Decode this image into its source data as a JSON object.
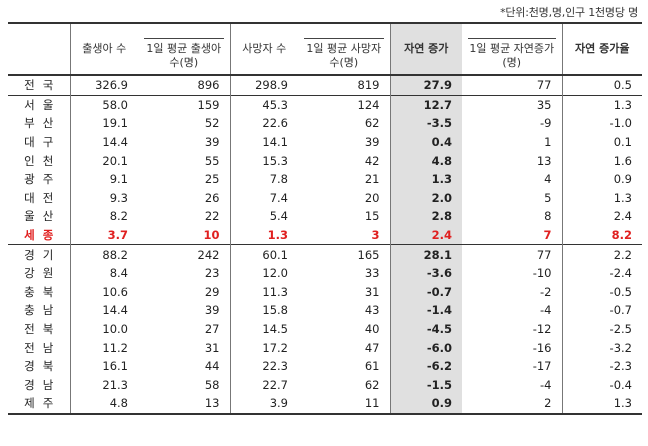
{
  "unit_note": "*단위:천명,명,인구 1천명당 명",
  "headers": {
    "births": "출생아 수",
    "births_daily": "1일 평균 출생아 수(명)",
    "deaths": "사망자 수",
    "deaths_daily": "1일 평균 사망자 수(명)",
    "natural": "자연 증가",
    "natural_daily": "1일 평균 자연증가(명)",
    "natural_rate": "자연 증가율"
  },
  "rows": [
    {
      "region": "전국",
      "births": "326.9",
      "births_daily": "896",
      "deaths": "298.9",
      "deaths_daily": "819",
      "natural": "27.9",
      "natural_daily": "77",
      "rate": "0.5"
    },
    {
      "region": "서울",
      "births": "58.0",
      "births_daily": "159",
      "deaths": "45.3",
      "deaths_daily": "124",
      "natural": "12.7",
      "natural_daily": "35",
      "rate": "1.3"
    },
    {
      "region": "부산",
      "births": "19.1",
      "births_daily": "52",
      "deaths": "22.6",
      "deaths_daily": "62",
      "natural": "-3.5",
      "natural_daily": "-9",
      "rate": "-1.0"
    },
    {
      "region": "대구",
      "births": "14.4",
      "births_daily": "39",
      "deaths": "14.1",
      "deaths_daily": "39",
      "natural": "0.4",
      "natural_daily": "1",
      "rate": "0.1"
    },
    {
      "region": "인천",
      "births": "20.1",
      "births_daily": "55",
      "deaths": "15.3",
      "deaths_daily": "42",
      "natural": "4.8",
      "natural_daily": "13",
      "rate": "1.6"
    },
    {
      "region": "광주",
      "births": "9.1",
      "births_daily": "25",
      "deaths": "7.8",
      "deaths_daily": "21",
      "natural": "1.3",
      "natural_daily": "4",
      "rate": "0.9"
    },
    {
      "region": "대전",
      "births": "9.3",
      "births_daily": "26",
      "deaths": "7.4",
      "deaths_daily": "20",
      "natural": "2.0",
      "natural_daily": "5",
      "rate": "1.3"
    },
    {
      "region": "울산",
      "births": "8.2",
      "births_daily": "22",
      "deaths": "5.4",
      "deaths_daily": "15",
      "natural": "2.8",
      "natural_daily": "8",
      "rate": "2.4"
    },
    {
      "region": "세종",
      "births": "3.7",
      "births_daily": "10",
      "deaths": "1.3",
      "deaths_daily": "3",
      "natural": "2.4",
      "natural_daily": "7",
      "rate": "8.2"
    },
    {
      "region": "경기",
      "births": "88.2",
      "births_daily": "242",
      "deaths": "60.1",
      "deaths_daily": "165",
      "natural": "28.1",
      "natural_daily": "77",
      "rate": "2.2"
    },
    {
      "region": "강원",
      "births": "8.4",
      "births_daily": "23",
      "deaths": "12.0",
      "deaths_daily": "33",
      "natural": "-3.6",
      "natural_daily": "-10",
      "rate": "-2.4"
    },
    {
      "region": "충북",
      "births": "10.6",
      "births_daily": "29",
      "deaths": "11.3",
      "deaths_daily": "31",
      "natural": "-0.7",
      "natural_daily": "-2",
      "rate": "-0.5"
    },
    {
      "region": "충남",
      "births": "14.4",
      "births_daily": "39",
      "deaths": "15.8",
      "deaths_daily": "43",
      "natural": "-1.4",
      "natural_daily": "-4",
      "rate": "-0.7"
    },
    {
      "region": "전북",
      "births": "10.0",
      "births_daily": "27",
      "deaths": "14.5",
      "deaths_daily": "40",
      "natural": "-4.5",
      "natural_daily": "-12",
      "rate": "-2.5"
    },
    {
      "region": "전남",
      "births": "11.2",
      "births_daily": "31",
      "deaths": "17.2",
      "deaths_daily": "47",
      "natural": "-6.0",
      "natural_daily": "-16",
      "rate": "-3.2"
    },
    {
      "region": "경북",
      "births": "16.1",
      "births_daily": "44",
      "deaths": "22.3",
      "deaths_daily": "61",
      "natural": "-6.2",
      "natural_daily": "-17",
      "rate": "-2.3"
    },
    {
      "region": "경남",
      "births": "21.3",
      "births_daily": "58",
      "deaths": "22.7",
      "deaths_daily": "62",
      "natural": "-1.5",
      "natural_daily": "-4",
      "rate": "-0.4"
    },
    {
      "region": "제주",
      "births": "4.8",
      "births_daily": "13",
      "deaths": "3.9",
      "deaths_daily": "11",
      "natural": "0.9",
      "natural_daily": "2",
      "rate": "1.3"
    }
  ]
}
